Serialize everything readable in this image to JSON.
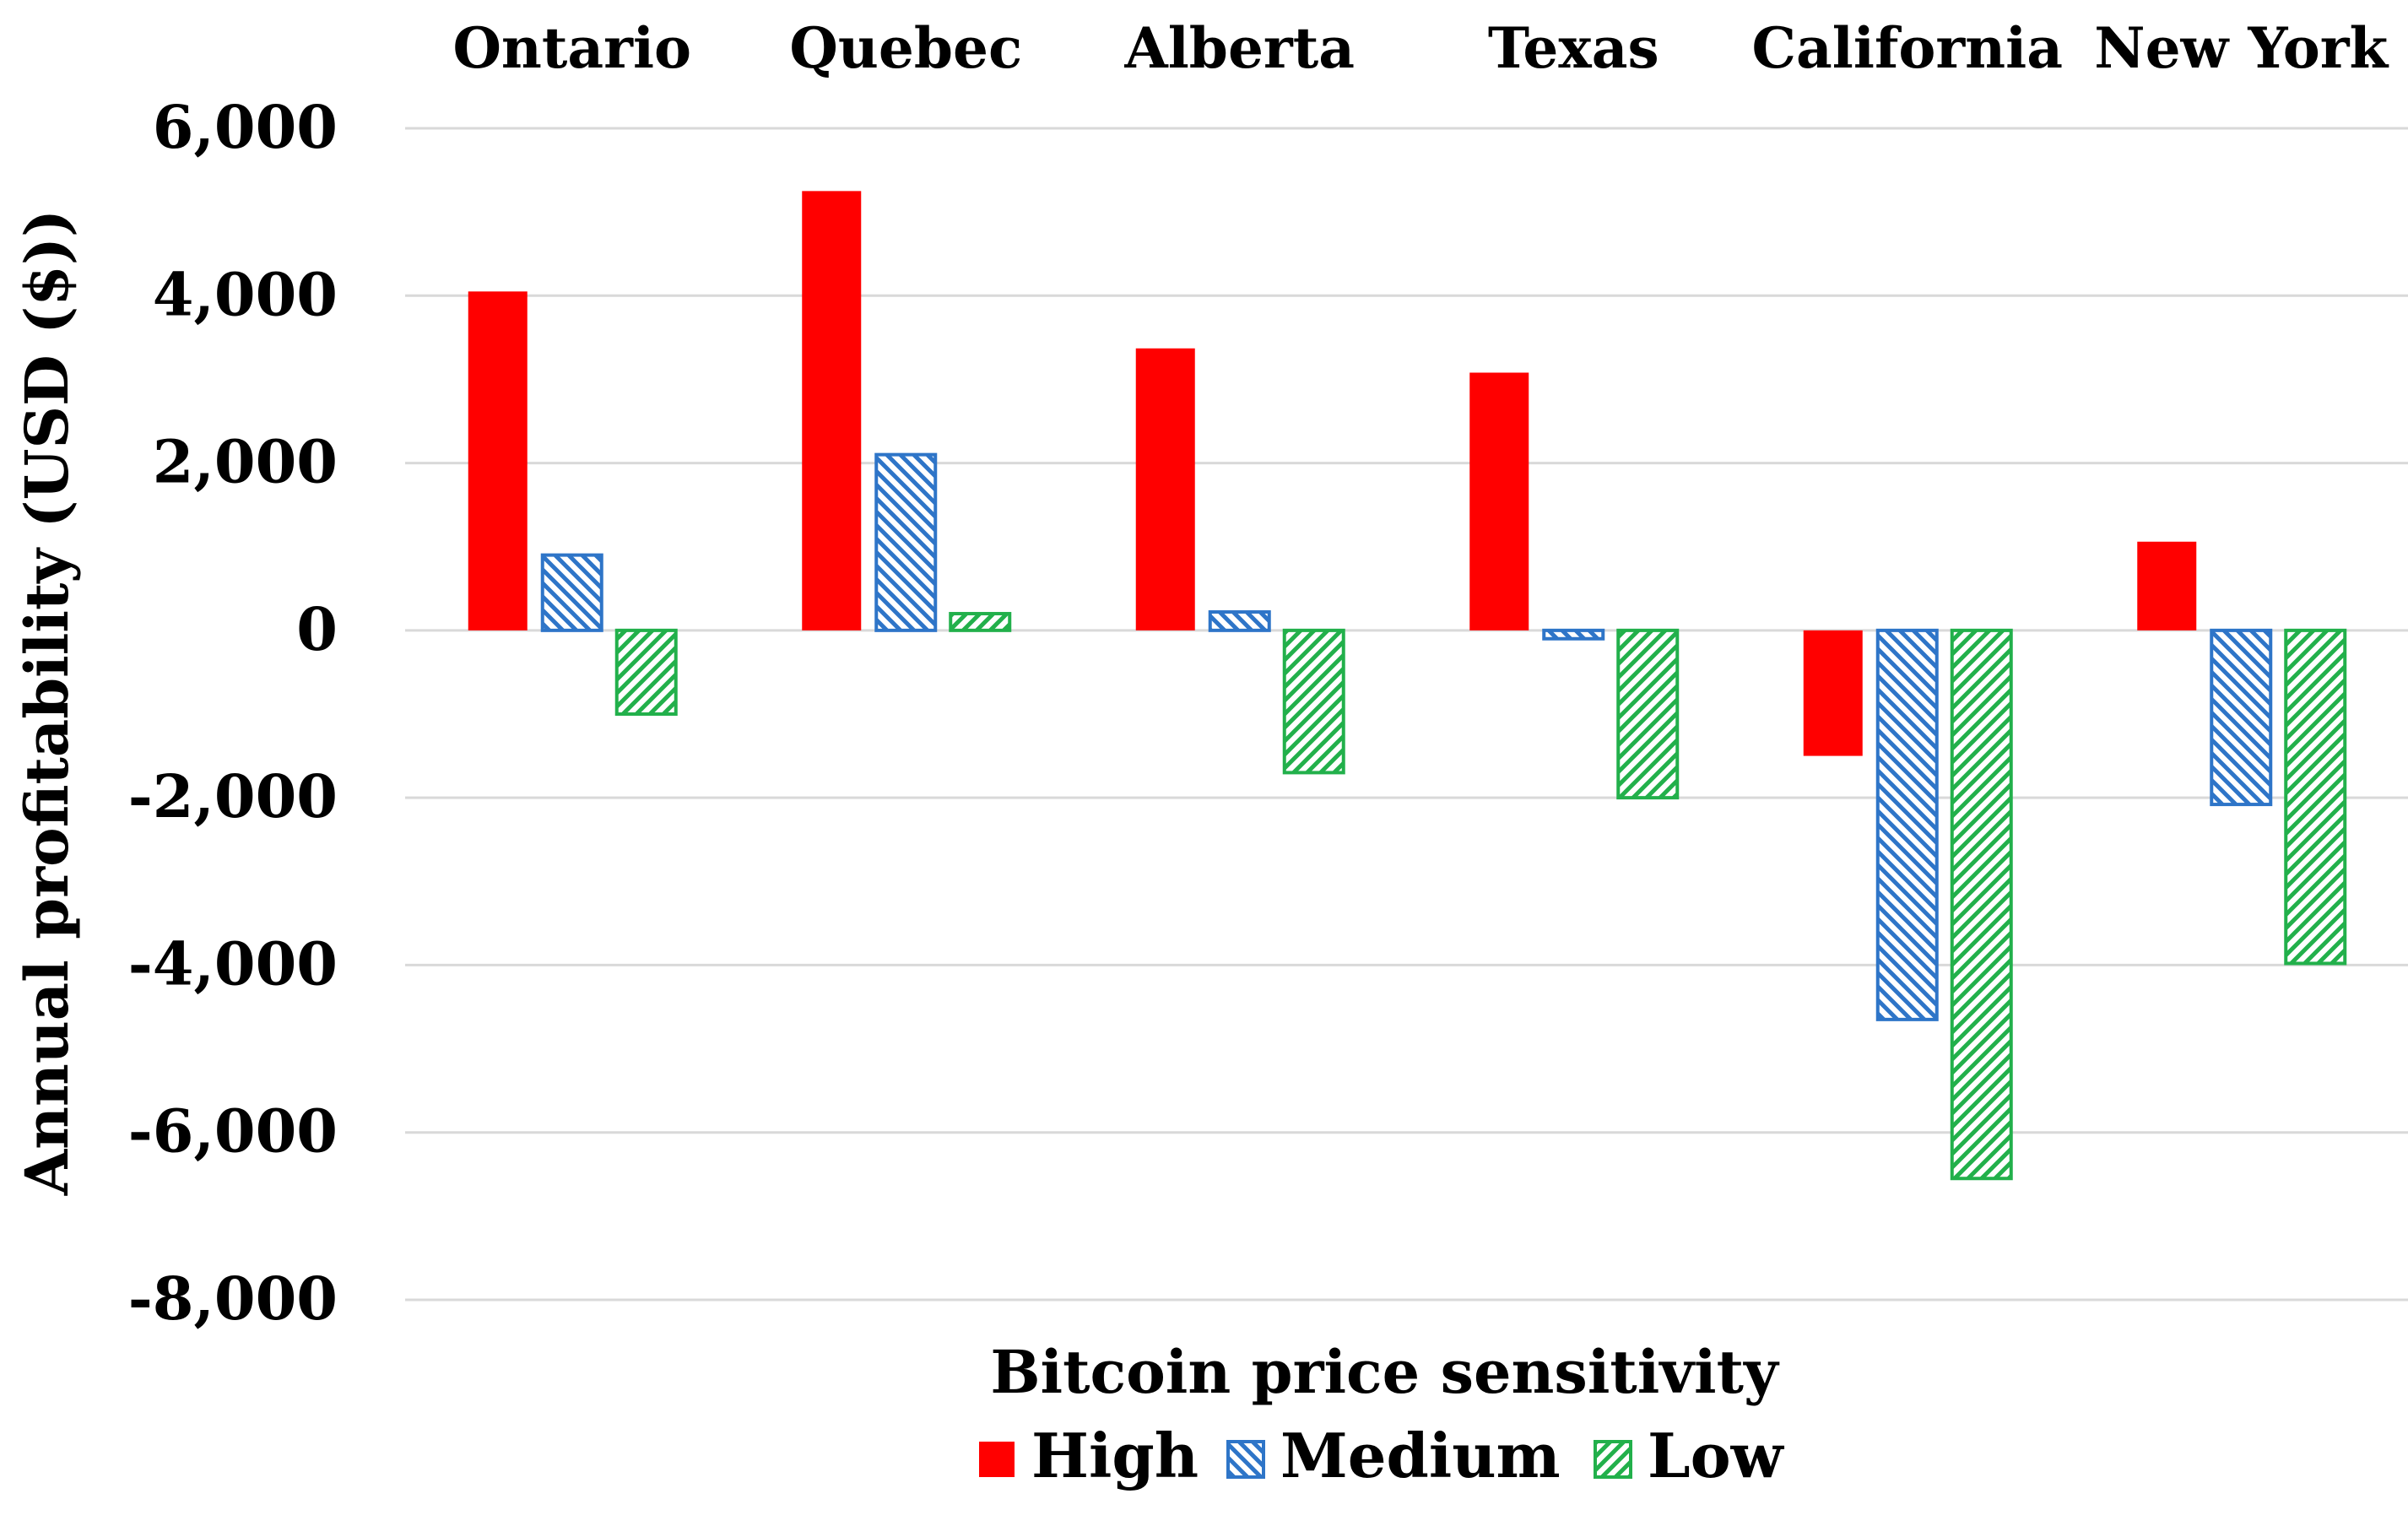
{
  "chart_data": {
    "type": "bar",
    "title": "",
    "xlabel": "Bitcoin price sensitivity",
    "ylabel": "Annual profitability (USD ($))",
    "ylim": [
      -8000,
      6000
    ],
    "yticks": [
      6000,
      4000,
      2000,
      0,
      -2000,
      -4000,
      -6000,
      -8000
    ],
    "ytick_labels": [
      "6,000",
      "4,000",
      "2,000",
      "0",
      "-2,000",
      "-4,000",
      "-6,000",
      "-8,000"
    ],
    "categories": [
      "Ontario",
      "Quebec",
      "Alberta",
      "Texas",
      "California",
      "New York"
    ],
    "category_label_position": "top",
    "grid": true,
    "legend_position": "bottom",
    "series": [
      {
        "name": "High",
        "pattern": "solid",
        "color": "#FF0000",
        "values": [
          4050,
          5250,
          3370,
          3080,
          -1500,
          1060
        ]
      },
      {
        "name": "Medium",
        "pattern": "diagonal-hatch-down",
        "color": "#2E75C8",
        "values": [
          900,
          2100,
          220,
          -100,
          -4650,
          -2080
        ]
      },
      {
        "name": "Low",
        "pattern": "diagonal-hatch-up",
        "color": "#22B04B",
        "values": [
          -1000,
          200,
          -1700,
          -2000,
          -6550,
          -3980
        ]
      }
    ],
    "gridline_color": "#D9D9D9"
  }
}
